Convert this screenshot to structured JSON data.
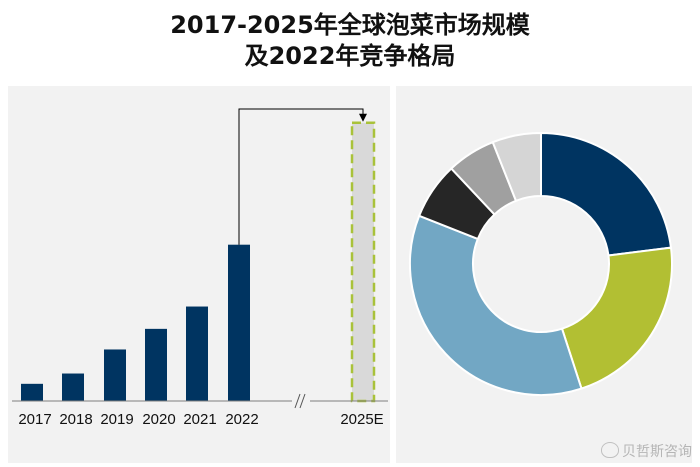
{
  "title": {
    "line1": "2017-2025年全球泡菜市场规模",
    "line2": "及2022年竞争格局"
  },
  "colors": {
    "bar": "#003461",
    "projection_fill": "#d9d9d9",
    "projection_border": "#a9c23a",
    "panel_bg": "#f2f2f2"
  },
  "chart_data": [
    {
      "type": "bar",
      "categories": [
        "2017",
        "2018",
        "2019",
        "2020",
        "2021",
        "2022",
        "2025E"
      ],
      "values": [
        1,
        1.6,
        3,
        4.2,
        5.5,
        9.1,
        16.2
      ],
      "projected": [
        false,
        false,
        false,
        false,
        false,
        false,
        true
      ],
      "axis_break": true,
      "title": "",
      "xlabel": "",
      "ylabel": "",
      "ylim": [
        0,
        17
      ]
    },
    {
      "type": "pie",
      "donut": true,
      "values": [
        23,
        22,
        36,
        7,
        6,
        6
      ],
      "colors": [
        "#003461",
        "#b2bf33",
        "#72a7c4",
        "#262626",
        "#a0a0a0",
        "#d5d5d5"
      ]
    }
  ],
  "watermark": "贝哲斯咨询"
}
